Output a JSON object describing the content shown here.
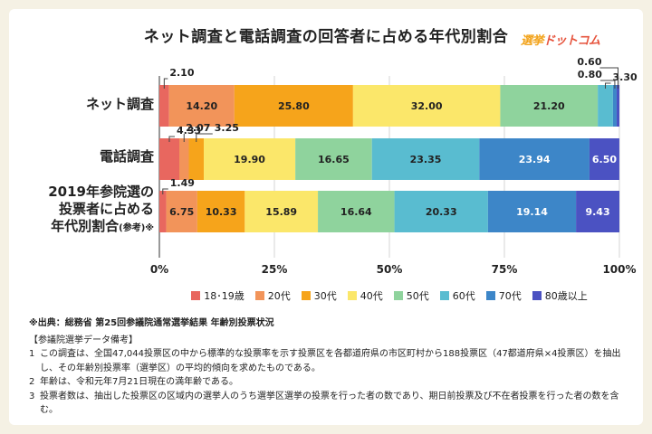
{
  "title": "ネット調査と電話調査の回答者に占める年代別割合",
  "logo": {
    "part1": "選挙",
    "part2": "ドットコム"
  },
  "chart_data": {
    "type": "bar",
    "orientation": "horizontal",
    "stacked": true,
    "title": "ネット調査と電話調査の回答者に占める年代別割合",
    "categories": [
      "ネット調査",
      "電話調査",
      "2019年参院選の投票者に占める年代別割合"
    ],
    "category_labels": [
      {
        "lines": [
          "ネット調査"
        ]
      },
      {
        "lines": [
          "電話調査"
        ]
      },
      {
        "lines": [
          "2019年参院選の",
          "投票者に占める",
          "年代別割合"
        ],
        "suffix": "(参考)※"
      }
    ],
    "series": [
      {
        "name": "18･19歳",
        "color": "#e8675f",
        "values": [
          2.1,
          4.33,
          1.49
        ]
      },
      {
        "name": "20代",
        "color": "#f2945a",
        "values": [
          14.2,
          2.07,
          6.75
        ]
      },
      {
        "name": "30代",
        "color": "#f6a41b",
        "values": [
          25.8,
          3.25,
          10.33
        ]
      },
      {
        "name": "40代",
        "color": "#fbe76a",
        "values": [
          32.0,
          19.9,
          15.89
        ]
      },
      {
        "name": "50代",
        "color": "#8fd39d",
        "values": [
          21.2,
          16.65,
          16.64
        ]
      },
      {
        "name": "60代",
        "color": "#59bcd0",
        "values": [
          3.3,
          23.35,
          20.33
        ]
      },
      {
        "name": "70代",
        "color": "#3d86c8",
        "values": [
          0.8,
          23.94,
          19.14
        ]
      },
      {
        "name": "80歳以上",
        "color": "#4b52c2",
        "values": [
          0.6,
          6.5,
          9.43
        ]
      }
    ],
    "xlim": [
      0,
      100
    ],
    "x_ticks": [
      "0%",
      "25%",
      "50%",
      "75%",
      "100%"
    ],
    "grid": true,
    "legend_position": "bottom"
  },
  "notes": {
    "source": "※出典：総務省 第25回参議院通常選挙結果 年齢別投票状況",
    "section": "【参議院選挙データ備考】",
    "items": [
      {
        "num": "1",
        "text": "この調査は、全国47,044投票区の中から標準的な投票率を示す投票区を各都道府県の市区町村から188投票区（47都道府県×4投票区）を抽出し、その年齢別投票率（選挙区）の平均的傾向を求めたものである。"
      },
      {
        "num": "2",
        "text": "年齢は、令和元年7月21日現在の満年齢である。"
      },
      {
        "num": "3",
        "text": "投票者数は、抽出した投票区の区域内の選挙人のうち選挙区選挙の投票を行った者の数であり、期日前投票及び不在者投票を行った者の数を含む。"
      }
    ]
  }
}
